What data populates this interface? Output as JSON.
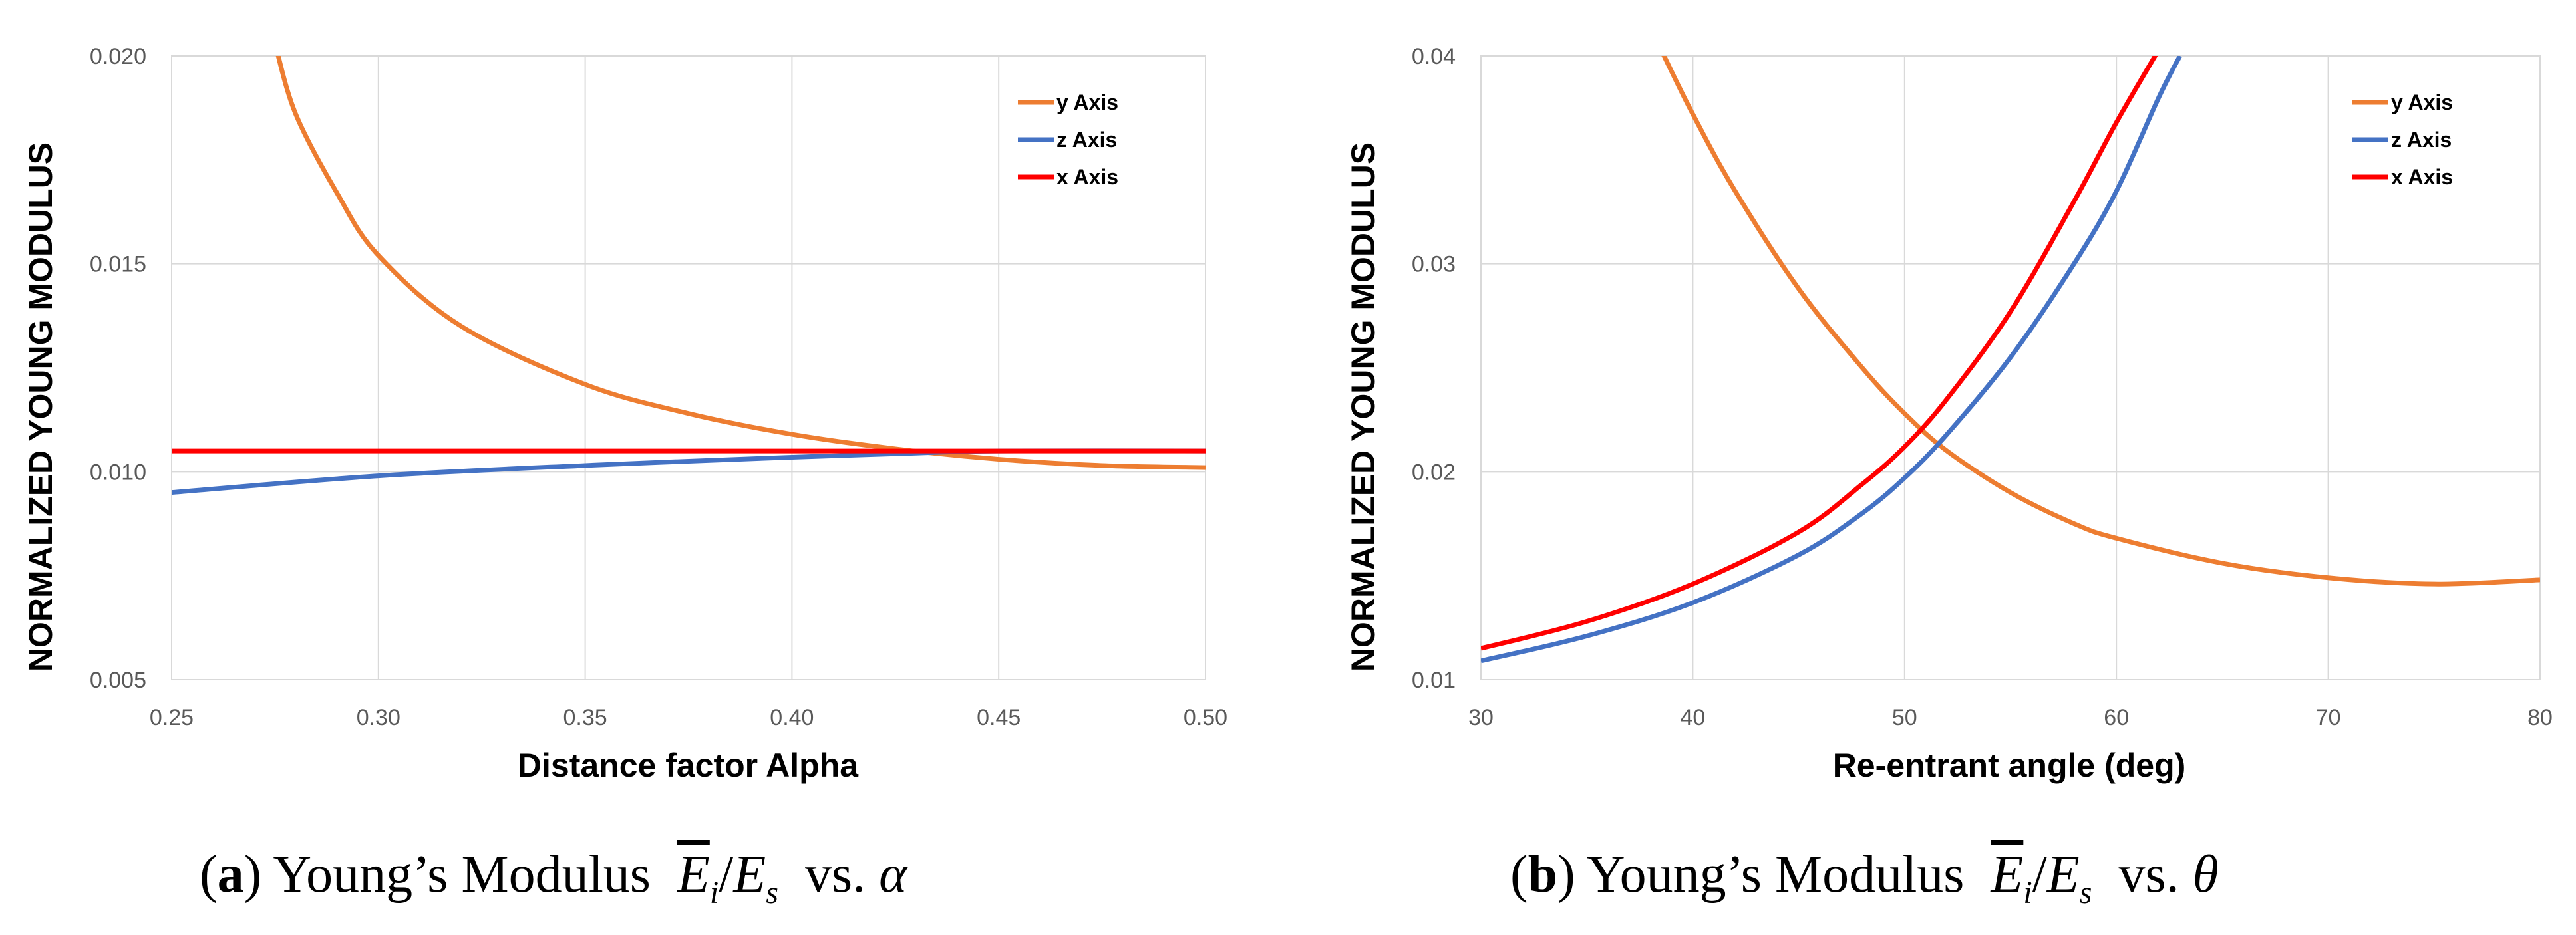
{
  "colors": {
    "y_axis": "#ED7D31",
    "z_axis": "#4472C4",
    "x_axis": "#FF0000",
    "grid": "#D9D9D9"
  },
  "chart_data": [
    {
      "type": "line",
      "title": "",
      "xlabel": "Distance factor Alpha",
      "ylabel": "NORMALIZED YOUNG MODULUS",
      "xlim": [
        0.25,
        0.5
      ],
      "ylim": [
        0.005,
        0.02
      ],
      "xticks": [
        "0.25",
        "0.30",
        "0.35",
        "0.40",
        "0.45",
        "0.50"
      ],
      "yticks": [
        "0.005",
        "0.010",
        "0.015",
        "0.020"
      ],
      "grid": true,
      "legend": "top-right",
      "series": [
        {
          "name": "y Axis",
          "color": "#ED7D31",
          "x": [
            0.275,
            0.28,
            0.29,
            0.3,
            0.32,
            0.35,
            0.375,
            0.4,
            0.425,
            0.45,
            0.475,
            0.5
          ],
          "y": [
            0.0203,
            0.0186,
            0.0167,
            0.0152,
            0.0135,
            0.0121,
            0.0114,
            0.0109,
            0.01055,
            0.0103,
            0.01015,
            0.0101
          ]
        },
        {
          "name": "z Axis",
          "color": "#4472C4",
          "x": [
            0.25,
            0.3,
            0.35,
            0.4,
            0.43,
            0.45,
            0.5
          ],
          "y": [
            0.0095,
            0.0099,
            0.01015,
            0.01035,
            0.01045,
            0.0105,
            0.0105
          ]
        },
        {
          "name": "x Axis",
          "color": "#FF0000",
          "x": [
            0.25,
            0.5
          ],
          "y": [
            0.0105,
            0.0105
          ]
        }
      ]
    },
    {
      "type": "line",
      "title": "",
      "xlabel": "Re-entrant angle (deg)",
      "ylabel": "NORMALIZED YOUNG MODULUS",
      "xlim": [
        30,
        80
      ],
      "ylim": [
        0.01,
        0.04
      ],
      "xticks": [
        "30",
        "40",
        "50",
        "60",
        "70",
        "80"
      ],
      "yticks": [
        "0.01",
        "0.02",
        "0.03",
        "0.04"
      ],
      "grid": true,
      "legend": "top-right",
      "series": [
        {
          "name": "y Axis",
          "color": "#ED7D31",
          "x": [
            38.5,
            40,
            42,
            45,
            48,
            50,
            52,
            55,
            58,
            60,
            65,
            70,
            75,
            80
          ],
          "y": [
            0.0403,
            0.0372,
            0.0335,
            0.0288,
            0.025,
            0.0228,
            0.021,
            0.019,
            0.0175,
            0.0168,
            0.0156,
            0.0149,
            0.0146,
            0.0148
          ]
        },
        {
          "name": "z Axis",
          "color": "#4472C4",
          "x": [
            30,
            35,
            40,
            45,
            48,
            50,
            52,
            55,
            58,
            60,
            62,
            63
          ],
          "y": [
            0.0109,
            0.0121,
            0.0137,
            0.016,
            0.018,
            0.0197,
            0.0218,
            0.0255,
            0.03,
            0.0335,
            0.038,
            0.04
          ]
        },
        {
          "name": "x Axis",
          "color": "#FF0000",
          "x": [
            30,
            35,
            40,
            45,
            48,
            50,
            52,
            55,
            58,
            60,
            62
          ],
          "y": [
            0.0115,
            0.0128,
            0.0146,
            0.0171,
            0.0194,
            0.0212,
            0.0235,
            0.0277,
            0.033,
            0.0368,
            0.0403
          ]
        }
      ]
    }
  ],
  "captions": {
    "a": {
      "label": "a",
      "text": "Young’s Modulus",
      "vs": "vs.",
      "symbol": "α"
    },
    "b": {
      "label": "b",
      "text": "Young’s Modulus",
      "vs": "vs.",
      "symbol": "θ"
    },
    "e_bar": "E",
    "e_sub": "i",
    "slash": "/",
    "e_s": "E",
    "e_s_sub": "s"
  }
}
